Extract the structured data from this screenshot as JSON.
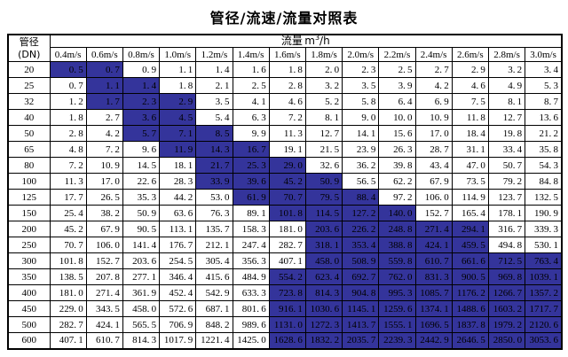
{
  "title": "管径/流速/流量对照表",
  "table": {
    "corner_header": {
      "line1": "管径",
      "line2": "(DN)"
    },
    "flow_header": {
      "label": "流量",
      "unit_base": "m",
      "unit_sup": "3",
      "unit_suffix": "/h"
    },
    "velocity_headers": [
      "0.4m/s",
      "0.6m/s",
      "0.8m/s",
      "1.0m/s",
      "1.2m/s",
      "1.4m/s",
      "1.6m/s",
      "1.8m/s",
      "2.0m/s",
      "2.2m/s",
      "2.4m/s",
      "2.6m/s",
      "2.8m/s",
      "3.0m/s"
    ],
    "rows": [
      {
        "dn": "20",
        "values": [
          "0.5",
          "0.7",
          "0.9",
          "1.1",
          "1.4",
          "1.6",
          "1.8",
          "2.0",
          "2.3",
          "2.5",
          "2.7",
          "2.9",
          "3.2",
          "3.4"
        ],
        "highlighted": [
          0,
          1
        ]
      },
      {
        "dn": "25",
        "values": [
          "0.7",
          "1.1",
          "1.4",
          "1.8",
          "2.1",
          "2.5",
          "2.8",
          "3.2",
          "3.5",
          "3.9",
          "4.2",
          "4.6",
          "4.9",
          "5.3"
        ],
        "highlighted": [
          1,
          2
        ]
      },
      {
        "dn": "32",
        "values": [
          "1.2",
          "1.7",
          "2.3",
          "2.9",
          "3.5",
          "4.1",
          "4.6",
          "5.2",
          "5.8",
          "6.4",
          "6.9",
          "7.5",
          "8.1",
          "8.7"
        ],
        "highlighted": [
          1,
          2,
          3
        ]
      },
      {
        "dn": "40",
        "values": [
          "1.8",
          "2.7",
          "3.6",
          "4.5",
          "5.4",
          "6.3",
          "7.2",
          "8.1",
          "9.0",
          "10.0",
          "10.9",
          "11.8",
          "12.7",
          "13.6"
        ],
        "highlighted": [
          2,
          3
        ]
      },
      {
        "dn": "50",
        "values": [
          "2.8",
          "4.2",
          "5.7",
          "7.1",
          "8.5",
          "9.9",
          "11.3",
          "12.7",
          "14.1",
          "15.6",
          "17.0",
          "18.4",
          "19.8",
          "21.2"
        ],
        "highlighted": [
          2,
          3,
          4
        ]
      },
      {
        "dn": "65",
        "values": [
          "4.8",
          "7.2",
          "9.6",
          "11.9",
          "14.3",
          "16.7",
          "19.1",
          "21.5",
          "23.9",
          "26.3",
          "28.7",
          "31.1",
          "33.4",
          "35.8"
        ],
        "highlighted": [
          3,
          4,
          5
        ]
      },
      {
        "dn": "80",
        "values": [
          "7.2",
          "10.9",
          "14.5",
          "18.1",
          "21.7",
          "25.3",
          "29.0",
          "32.6",
          "36.2",
          "39.8",
          "43.4",
          "47.0",
          "50.7",
          "54.3"
        ],
        "highlighted": [
          4,
          5,
          6
        ]
      },
      {
        "dn": "100",
        "values": [
          "11.3",
          "17.0",
          "22.6",
          "28.3",
          "33.9",
          "39.6",
          "45.2",
          "50.9",
          "56.5",
          "62.2",
          "67.9",
          "73.5",
          "79.2",
          "84.8"
        ],
        "highlighted": [
          4,
          5,
          6,
          7
        ]
      },
      {
        "dn": "125",
        "values": [
          "17.7",
          "26.5",
          "35.3",
          "44.2",
          "53.0",
          "61.9",
          "70.7",
          "79.5",
          "88.4",
          "97.2",
          "106.0",
          "114.9",
          "123.7",
          "132.5"
        ],
        "highlighted": [
          5,
          6,
          7,
          8
        ]
      },
      {
        "dn": "150",
        "values": [
          "25.4",
          "38.2",
          "50.9",
          "63.6",
          "76.3",
          "89.1",
          "101.8",
          "114.5",
          "127.2",
          "140.0",
          "152.7",
          "165.4",
          "178.1",
          "190.9"
        ],
        "highlighted": [
          6,
          7,
          8,
          9
        ]
      },
      {
        "dn": "200",
        "values": [
          "45.2",
          "67.9",
          "90.5",
          "113.1",
          "135.7",
          "158.3",
          "181.0",
          "203.6",
          "226.2",
          "248.8",
          "271.4",
          "294.1",
          "316.7",
          "339.3"
        ],
        "highlighted": [
          7,
          8,
          9,
          10,
          11
        ]
      },
      {
        "dn": "250",
        "values": [
          "70.7",
          "106.0",
          "141.4",
          "176.7",
          "212.1",
          "247.4",
          "282.7",
          "318.1",
          "353.4",
          "388.8",
          "424.1",
          "459.5",
          "494.8",
          "530.1"
        ],
        "highlighted": [
          7,
          8,
          9,
          10,
          11
        ]
      },
      {
        "dn": "300",
        "values": [
          "101.8",
          "152.7",
          "203.6",
          "254.5",
          "305.4",
          "356.3",
          "407.1",
          "458.0",
          "508.9",
          "559.8",
          "610.7",
          "661.6",
          "712.5",
          "763.4"
        ],
        "highlighted": [
          7,
          8,
          9,
          10,
          11,
          12,
          13
        ]
      },
      {
        "dn": "350",
        "values": [
          "138.5",
          "207.8",
          "277.1",
          "346.4",
          "415.6",
          "484.9",
          "554.2",
          "623.4",
          "692.7",
          "762.0",
          "831.3",
          "900.5",
          "969.8",
          "1039.1"
        ],
        "highlighted": [
          6,
          7,
          8,
          9,
          10,
          11,
          12,
          13
        ]
      },
      {
        "dn": "400",
        "values": [
          "181.0",
          "271.4",
          "361.9",
          "452.4",
          "542.9",
          "633.3",
          "723.8",
          "814.3",
          "904.8",
          "995.3",
          "1085.7",
          "1176.2",
          "1266.7",
          "1357.2"
        ],
        "highlighted": [
          6,
          7,
          8,
          9,
          10,
          11,
          12,
          13
        ]
      },
      {
        "dn": "450",
        "values": [
          "229.0",
          "343.5",
          "458.0",
          "572.6",
          "687.1",
          "801.6",
          "916.1",
          "1030.6",
          "1145.1",
          "1259.6",
          "1374.1",
          "1488.6",
          "1603.2",
          "1717.7"
        ],
        "highlighted": [
          6,
          7,
          8,
          9,
          10,
          11,
          12,
          13
        ]
      },
      {
        "dn": "500",
        "values": [
          "282.7",
          "424.1",
          "565.5",
          "706.9",
          "848.2",
          "989.6",
          "1131.0",
          "1272.3",
          "1413.7",
          "1555.1",
          "1696.5",
          "1837.8",
          "1979.2",
          "2120.6"
        ],
        "highlighted": [
          6,
          7,
          8,
          9,
          10,
          11,
          12,
          13
        ]
      },
      {
        "dn": "600",
        "values": [
          "407.1",
          "610.7",
          "814.3",
          "1017.9",
          "1221.4",
          "1425.0",
          "1628.6",
          "1832.2",
          "2035.7",
          "2239.3",
          "2442.9",
          "2646.5",
          "2850.0",
          "3053.6"
        ],
        "highlighted": [
          6,
          7,
          8,
          9,
          10,
          11,
          12,
          13
        ]
      }
    ]
  },
  "colors": {
    "highlight": "#34349B",
    "border": "#000000",
    "text": "#000000",
    "page_background": "#FFFFFF"
  }
}
